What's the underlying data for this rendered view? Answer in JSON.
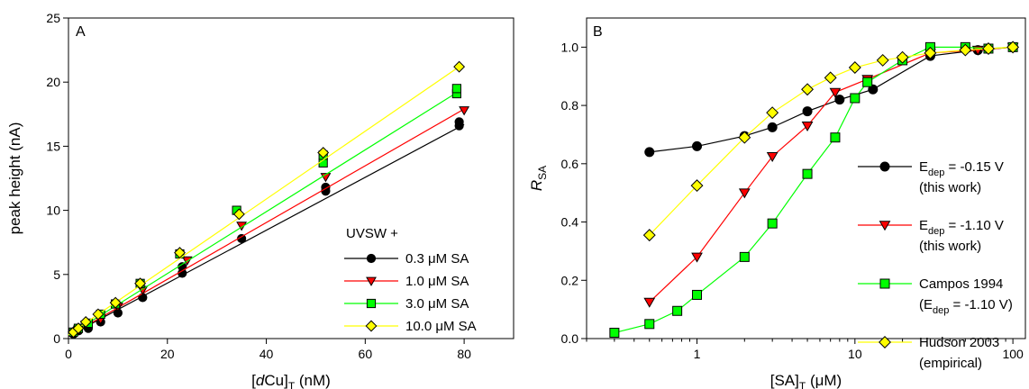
{
  "chart_data": [
    {
      "type": "scatter",
      "panel_label": "A",
      "xlabel": {
        "pre": "[",
        "italic": "d",
        "main": "Cu]",
        "sub": "T",
        "post": " (nM)"
      },
      "ylabel": "peak height (nA)",
      "xlim": [
        0,
        90
      ],
      "ylim": [
        0,
        25
      ],
      "xticks": [
        0,
        20,
        40,
        60,
        80
      ],
      "yticks": [
        0,
        5,
        10,
        15,
        20,
        25
      ],
      "legend_title": "UVSW +",
      "legend_position": "bottom-right",
      "series": [
        {
          "name": "0.3 μM SA",
          "marker": "circle",
          "color": "#000000",
          "line": [
            [
              0,
              0.2
            ],
            [
              80,
              16.7
            ]
          ],
          "points": [
            [
              1,
              0.35
            ],
            [
              2,
              0.6
            ],
            [
              4,
              0.8
            ],
            [
              6.5,
              1.3
            ],
            [
              10,
              2.0
            ],
            [
              15,
              3.2
            ],
            [
              23,
              5.1
            ],
            [
              23,
              5.6
            ],
            [
              35,
              7.8
            ],
            [
              52,
              11.5
            ],
            [
              52,
              11.8
            ],
            [
              79,
              16.6
            ],
            [
              79,
              16.9
            ]
          ]
        },
        {
          "name": "1.0 μM SA",
          "marker": "triangle-down",
          "color": "#ff0000",
          "line": [
            [
              0,
              0.2
            ],
            [
              80,
              17.9
            ]
          ],
          "points": [
            [
              1,
              0.4
            ],
            [
              2,
              0.7
            ],
            [
              3.5,
              1.1
            ],
            [
              6.5,
              1.5
            ],
            [
              10,
              2.5
            ],
            [
              15,
              3.8
            ],
            [
              24,
              6.1
            ],
            [
              35,
              8.8
            ],
            [
              52,
              12.6
            ],
            [
              80,
              17.8
            ]
          ]
        },
        {
          "name": "3.0 μM SA",
          "marker": "square",
          "color": "#00ff00",
          "line": [
            [
              0,
              0.25
            ],
            [
              79,
              19.3
            ]
          ],
          "points": [
            [
              1,
              0.5
            ],
            [
              2,
              0.8
            ],
            [
              4,
              1.2
            ],
            [
              6.5,
              1.9
            ],
            [
              9.5,
              2.7
            ],
            [
              14.5,
              4.3
            ],
            [
              22.5,
              6.6
            ],
            [
              34,
              10.0
            ],
            [
              51.5,
              13.7
            ],
            [
              51.5,
              14.3
            ],
            [
              78.5,
              19.1
            ],
            [
              78.5,
              19.5
            ]
          ]
        },
        {
          "name": "10.0 μM SA",
          "marker": "diamond",
          "color": "#ffff00",
          "line": [
            [
              0,
              0.3
            ],
            [
              79,
              21.2
            ]
          ],
          "points": [
            [
              1,
              0.5
            ],
            [
              2,
              0.8
            ],
            [
              3.5,
              1.3
            ],
            [
              6,
              1.9
            ],
            [
              9.5,
              2.8
            ],
            [
              14.5,
              4.3
            ],
            [
              22.5,
              6.7
            ],
            [
              34.5,
              9.7
            ],
            [
              51.5,
              14.5
            ],
            [
              79,
              21.2
            ]
          ]
        }
      ]
    },
    {
      "type": "line",
      "panel_label": "B",
      "xlabel": {
        "pre": "[SA]",
        "sub": "T",
        "post": " (μM)"
      },
      "ylabel": {
        "main": "R",
        "sub": "SA"
      },
      "xscale": "log",
      "xlim": [
        0.2,
        120
      ],
      "ylim": [
        0,
        1.1
      ],
      "xticks": [
        1,
        10,
        100
      ],
      "yticks": [
        0.0,
        0.2,
        0.4,
        0.6,
        0.8,
        1.0
      ],
      "ytick_labels": [
        "0.0",
        "0.2",
        "0.4",
        "0.6",
        "0.8",
        "1.0"
      ],
      "legend_position": "right",
      "series": [
        {
          "name_lines": [
            {
              "pre": "E",
              "sub": "dep",
              "post": " = -0.15 V"
            },
            {
              "pre": "(this work)"
            }
          ],
          "marker": "circle",
          "color": "#000000",
          "x": [
            0.5,
            1,
            2,
            3,
            5,
            8,
            13,
            30,
            60,
            100
          ],
          "y": [
            0.64,
            0.66,
            0.695,
            0.725,
            0.78,
            0.82,
            0.855,
            0.97,
            0.99,
            1.0
          ]
        },
        {
          "name_lines": [
            {
              "pre": "E",
              "sub": "dep",
              "post": " = -1.10 V"
            },
            {
              "pre": "(this work)"
            }
          ],
          "marker": "triangle-down",
          "color": "#ff0000",
          "x": [
            0.5,
            1,
            2,
            3,
            5,
            7.5,
            12,
            30,
            60,
            100
          ],
          "y": [
            0.125,
            0.28,
            0.5,
            0.625,
            0.73,
            0.845,
            0.89,
            0.98,
            0.99,
            1.0
          ]
        },
        {
          "name_lines": [
            {
              "pre": "Campos 1994"
            },
            {
              "pre": "(E",
              "sub": "dep",
              "post": " = -1.10 V)"
            }
          ],
          "marker": "square",
          "color": "#00ff00",
          "x": [
            0.3,
            0.5,
            0.75,
            1,
            2,
            3,
            5,
            7.5,
            10,
            12,
            20,
            30,
            50,
            70,
            100
          ],
          "y": [
            0.02,
            0.05,
            0.095,
            0.15,
            0.28,
            0.395,
            0.565,
            0.69,
            0.825,
            0.88,
            0.955,
            1.0,
            1.0,
            0.995,
            1.0
          ]
        },
        {
          "name_lines": [
            {
              "pre": "Hudson 2003"
            },
            {
              "pre": "(empirical)"
            }
          ],
          "marker": "diamond",
          "color": "#ffff00",
          "x": [
            0.5,
            1,
            2,
            3,
            5,
            7,
            10,
            15,
            20,
            30,
            50,
            70,
            100
          ],
          "y": [
            0.355,
            0.525,
            0.69,
            0.775,
            0.855,
            0.895,
            0.93,
            0.955,
            0.965,
            0.98,
            0.99,
            0.995,
            1.0
          ]
        }
      ]
    }
  ]
}
